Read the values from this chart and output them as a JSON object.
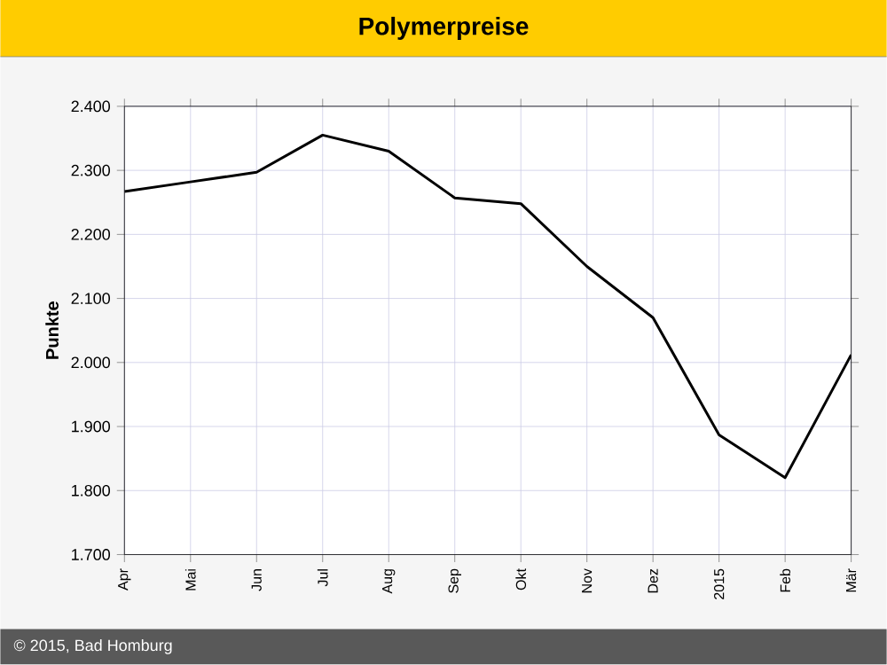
{
  "chart_data": {
    "type": "line",
    "title": "Polymerpreise",
    "ylabel": "Punkte",
    "categories": [
      "Apr",
      "Mai",
      "Jun",
      "Jul",
      "Aug",
      "Sep",
      "Okt",
      "Nov",
      "Dez",
      "2015",
      "Feb",
      "Mär"
    ],
    "series": [
      {
        "color": "#000000",
        "values": [
          2267,
          2282,
          2297,
          2355,
          2330,
          2257,
          2248,
          2150,
          2070,
          1887,
          1820,
          2012
        ]
      }
    ],
    "ylim": [
      1700,
      2400
    ],
    "yticks": [
      {
        "value": 1700,
        "label": "1.700"
      },
      {
        "value": 1800,
        "label": "1.800"
      },
      {
        "value": 1900,
        "label": "1.900"
      },
      {
        "value": 2000,
        "label": "2.000"
      },
      {
        "value": 2100,
        "label": "2.100"
      },
      {
        "value": 2200,
        "label": "2.200"
      },
      {
        "value": 2300,
        "label": "2.300"
      },
      {
        "value": 2400,
        "label": "2.400"
      }
    ],
    "grid": true,
    "marker": "none",
    "line_style": "solid",
    "annotations": [
      "© 2015, Bad Homburg"
    ]
  }
}
